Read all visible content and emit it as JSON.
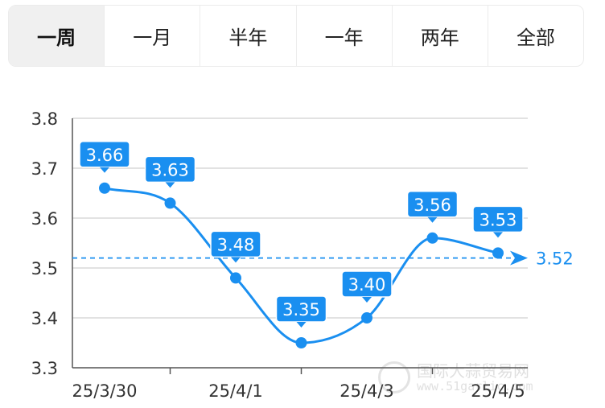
{
  "tabs": [
    {
      "label": "一周",
      "active": true
    },
    {
      "label": "一月",
      "active": false
    },
    {
      "label": "半年",
      "active": false
    },
    {
      "label": "一年",
      "active": false
    },
    {
      "label": "两年",
      "active": false
    },
    {
      "label": "全部",
      "active": false
    }
  ],
  "watermark": {
    "name": "国际大蒜贸易网",
    "url": "www.51garlic.com"
  },
  "colors": {
    "line": "#1a8ff0",
    "label_bg": "#1a8ff0",
    "grid": "#d9d9d9",
    "axis": "#555555"
  },
  "chart_data": {
    "type": "line",
    "title": "",
    "xlabel": "",
    "ylabel": "",
    "x": [
      "25/3/30",
      "25/3/31",
      "25/4/1",
      "25/4/2",
      "25/4/3",
      "25/4/4",
      "25/4/5"
    ],
    "values": [
      3.66,
      3.63,
      3.48,
      3.35,
      3.4,
      3.56,
      3.53
    ],
    "data_labels": [
      "3.66",
      "3.63",
      "3.48",
      "3.35",
      "3.40",
      "3.56",
      "3.53"
    ],
    "x_tick_labels": [
      "25/3/30",
      "",
      "25/4/1",
      "",
      "25/4/3",
      "",
      "25/4/5"
    ],
    "ylim": [
      3.3,
      3.8
    ],
    "y_ticks": [
      3.3,
      3.4,
      3.5,
      3.6,
      3.7,
      3.8
    ],
    "y_tick_labels": [
      "3.3",
      "3.4",
      "3.5",
      "3.6",
      "3.7",
      "3.8"
    ],
    "reference_line": {
      "value": 3.52,
      "label": "3.52",
      "style": "dashed"
    },
    "grid": true,
    "smooth": true
  }
}
